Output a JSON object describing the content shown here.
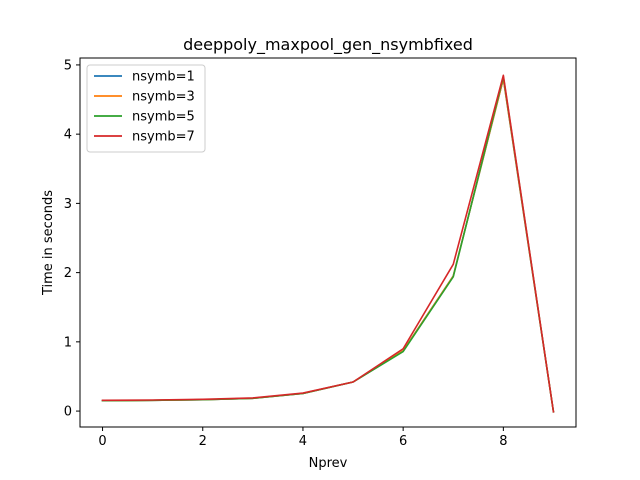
{
  "chart_data": {
    "type": "line",
    "title": "deeppoly_maxpool_gen_nsymbfixed",
    "xlabel": "Nprev",
    "ylabel": "Time in seconds",
    "x": [
      0,
      1,
      2,
      3,
      4,
      5,
      6,
      7,
      8,
      9
    ],
    "xlim": [
      -0.45,
      9.45
    ],
    "ylim": [
      -0.23,
      5.1
    ],
    "xticks": [
      0,
      2,
      4,
      6,
      8
    ],
    "yticks": [
      0,
      1,
      2,
      3,
      4,
      5
    ],
    "grid": false,
    "legend_position": "upper-left",
    "series": [
      {
        "name": "nsymb=1",
        "color": "#1f77b4",
        "values": [
          0.15,
          0.155,
          0.165,
          0.185,
          0.255,
          0.42,
          0.87,
          1.95,
          4.8,
          -0.01
        ]
      },
      {
        "name": "nsymb=3",
        "color": "#ff7f0e",
        "values": [
          0.15,
          0.155,
          0.165,
          0.185,
          0.255,
          0.42,
          0.87,
          1.95,
          4.8,
          -0.01
        ]
      },
      {
        "name": "nsymb=5",
        "color": "#2ca02c",
        "values": [
          0.15,
          0.155,
          0.165,
          0.185,
          0.255,
          0.42,
          0.86,
          1.94,
          4.83,
          -0.01
        ]
      },
      {
        "name": "nsymb=7",
        "color": "#d62728",
        "values": [
          0.155,
          0.16,
          0.17,
          0.19,
          0.26,
          0.42,
          0.9,
          2.12,
          4.85,
          -0.01
        ]
      }
    ]
  }
}
